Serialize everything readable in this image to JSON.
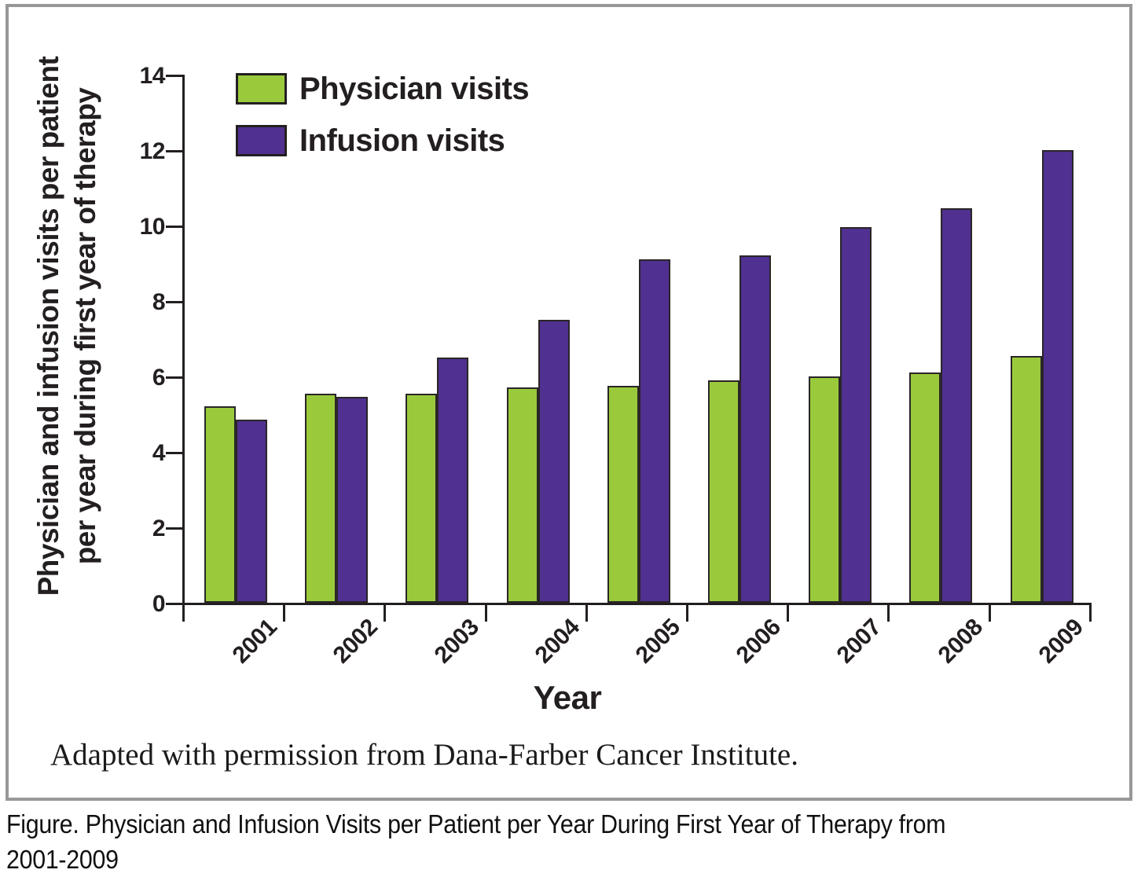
{
  "figure": {
    "source_note": "Adapted with permission from Dana-Farber Cancer Institute.",
    "caption_line1": "Figure. Physician and Infusion Visits per Patient per Year During First Year of Therapy from",
    "caption_line2": "2001-2009"
  },
  "chart_data": {
    "type": "bar",
    "title": "",
    "categories": [
      "2001",
      "2002",
      "2003",
      "2004",
      "2005",
      "2006",
      "2007",
      "2008",
      "2009"
    ],
    "series": [
      {
        "name": "Physician visits",
        "color": "#9ACA3C",
        "values": [
          5.2,
          5.55,
          5.55,
          5.7,
          5.75,
          5.9,
          6.0,
          6.1,
          6.55
        ]
      },
      {
        "name": "Infusion visits",
        "color": "#503090",
        "values": [
          4.85,
          5.45,
          6.5,
          7.5,
          9.1,
          9.2,
          9.95,
          10.45,
          12.0
        ]
      }
    ],
    "xlabel": "Year",
    "ylabel_line1": "Physician and infusion visits per patient",
    "ylabel_line2": "per year during first year of therapy",
    "ylim": [
      0,
      14
    ],
    "yticks": [
      0,
      2,
      4,
      6,
      8,
      10,
      12,
      14
    ],
    "grid": false,
    "legend_position": "top-left",
    "axis_color": "#231f20",
    "bar_outline_color": "#2a2627"
  }
}
